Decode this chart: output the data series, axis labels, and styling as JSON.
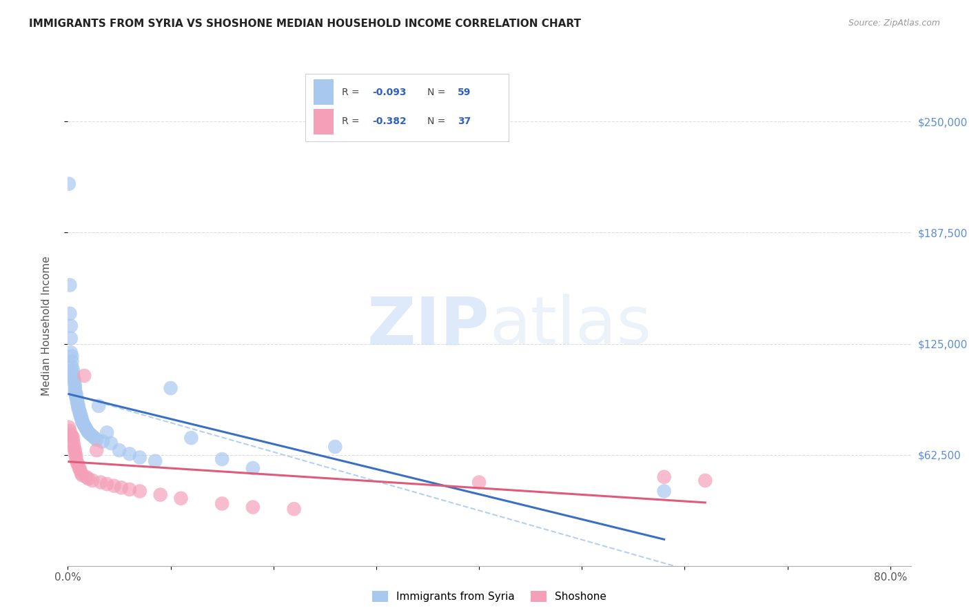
{
  "title": "IMMIGRANTS FROM SYRIA VS SHOSHONE MEDIAN HOUSEHOLD INCOME CORRELATION CHART",
  "source": "Source: ZipAtlas.com",
  "ylabel": "Median Household Income",
  "ytick_labels": [
    "$62,500",
    "$125,000",
    "$187,500",
    "$250,000"
  ],
  "ytick_values": [
    62500,
    125000,
    187500,
    250000
  ],
  "ylim": [
    0,
    270000
  ],
  "xlim": [
    0,
    0.82
  ],
  "watermark_zip": "ZIP",
  "watermark_atlas": "atlas",
  "series": [
    {
      "name": "Immigrants from Syria",
      "R": -0.093,
      "N": 59,
      "color": "#a8c8f0",
      "trend_color": "#3a6fc4",
      "x": [
        0.001,
        0.002,
        0.002,
        0.003,
        0.003,
        0.003,
        0.004,
        0.004,
        0.004,
        0.005,
        0.005,
        0.005,
        0.006,
        0.006,
        0.007,
        0.007,
        0.007,
        0.007,
        0.008,
        0.008,
        0.008,
        0.009,
        0.009,
        0.009,
        0.01,
        0.01,
        0.01,
        0.011,
        0.011,
        0.012,
        0.012,
        0.013,
        0.013,
        0.014,
        0.014,
        0.015,
        0.016,
        0.017,
        0.018,
        0.019,
        0.02,
        0.022,
        0.024,
        0.026,
        0.028,
        0.03,
        0.034,
        0.038,
        0.042,
        0.05,
        0.06,
        0.07,
        0.085,
        0.1,
        0.12,
        0.15,
        0.18,
        0.26,
        0.58
      ],
      "y": [
        215000,
        158000,
        142000,
        135000,
        128000,
        120000,
        118000,
        115000,
        112000,
        110000,
        108000,
        106000,
        105000,
        103000,
        102000,
        100000,
        99000,
        98000,
        97000,
        96000,
        95000,
        94000,
        93000,
        92000,
        91000,
        90000,
        89000,
        88000,
        87000,
        86000,
        85000,
        84000,
        83000,
        82000,
        81000,
        80000,
        79000,
        78000,
        77000,
        76000,
        75000,
        74000,
        73000,
        72000,
        71000,
        90000,
        70000,
        75000,
        69000,
        65000,
        63000,
        61000,
        59000,
        100000,
        72000,
        60000,
        55000,
        67000,
        42000
      ]
    },
    {
      "name": "Shoshone",
      "R": -0.382,
      "N": 37,
      "color": "#f4a0b8",
      "trend_color": "#e05a7a",
      "x": [
        0.001,
        0.002,
        0.003,
        0.004,
        0.005,
        0.005,
        0.006,
        0.006,
        0.007,
        0.007,
        0.008,
        0.008,
        0.009,
        0.01,
        0.011,
        0.012,
        0.013,
        0.014,
        0.016,
        0.018,
        0.02,
        0.024,
        0.028,
        0.032,
        0.038,
        0.045,
        0.052,
        0.06,
        0.07,
        0.09,
        0.11,
        0.15,
        0.18,
        0.22,
        0.4,
        0.58,
        0.62
      ],
      "y": [
        78000,
        76000,
        74000,
        73000,
        72000,
        70000,
        68000,
        66000,
        65000,
        63000,
        62000,
        60000,
        58000,
        57000,
        55000,
        54000,
        52000,
        51000,
        107000,
        50000,
        49000,
        48000,
        65000,
        47000,
        46000,
        45000,
        44000,
        43000,
        42000,
        40000,
        38000,
        35000,
        33000,
        32000,
        47000,
        50000,
        48000
      ]
    }
  ],
  "legend_R_color": "#3060c0",
  "legend_N_color": "#3060c0",
  "background_color": "#ffffff",
  "grid_color": "#dddddd",
  "dashed_line_color": "#aaccee"
}
